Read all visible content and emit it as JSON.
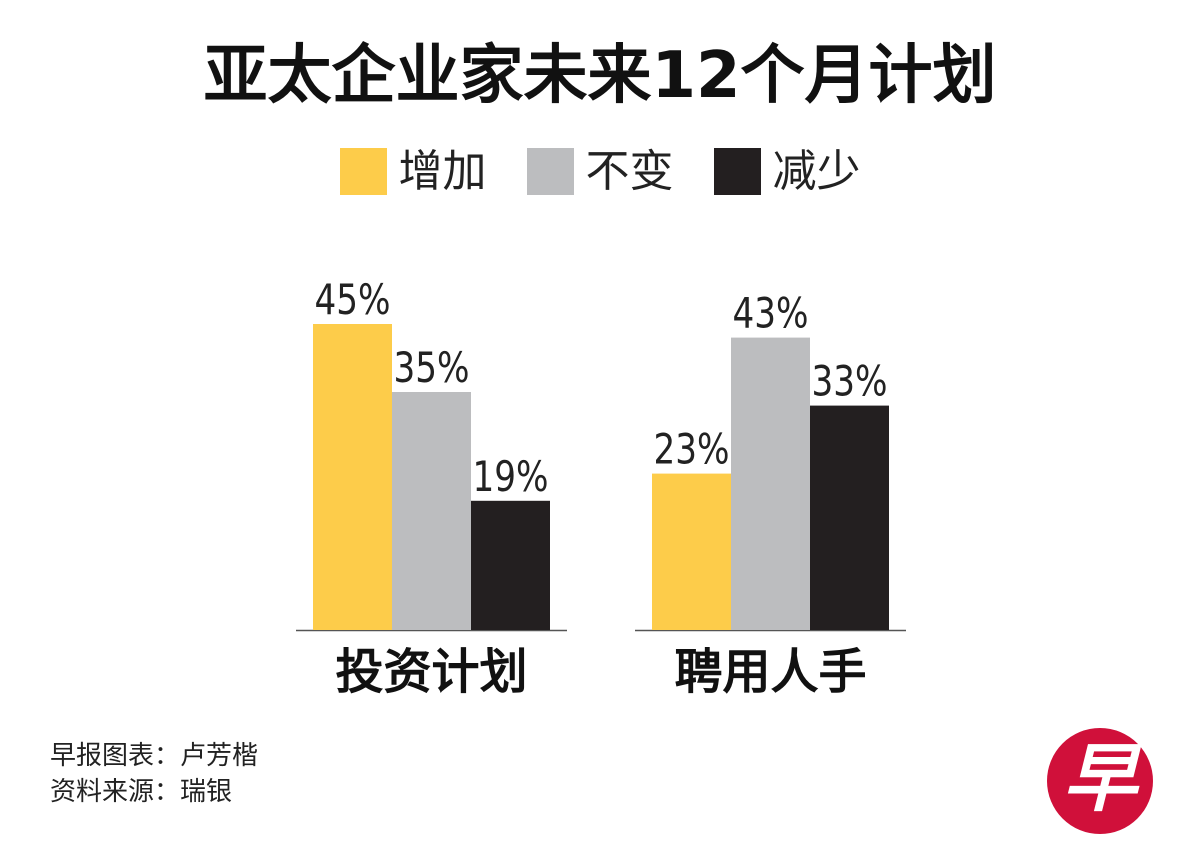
{
  "chart_data": {
    "type": "bar",
    "title": "亚太企业家未来12个月计划",
    "categories": [
      "投资计划",
      "聘用人手"
    ],
    "series": [
      {
        "name": "增加",
        "values": [
          45,
          23
        ],
        "color": "#fdcc4a"
      },
      {
        "name": "不变",
        "values": [
          35,
          43
        ],
        "color": "#bcbdbf"
      },
      {
        "name": "减少",
        "values": [
          19,
          33
        ],
        "color": "#231f20"
      }
    ],
    "value_suffix": "%",
    "legend_position": "top-center",
    "grid": false
  },
  "footer": {
    "credit": "早报图表：卢芳楷",
    "source": "资料来源：瑞银"
  },
  "logo": {
    "text": "早",
    "color": "#d0103a"
  }
}
